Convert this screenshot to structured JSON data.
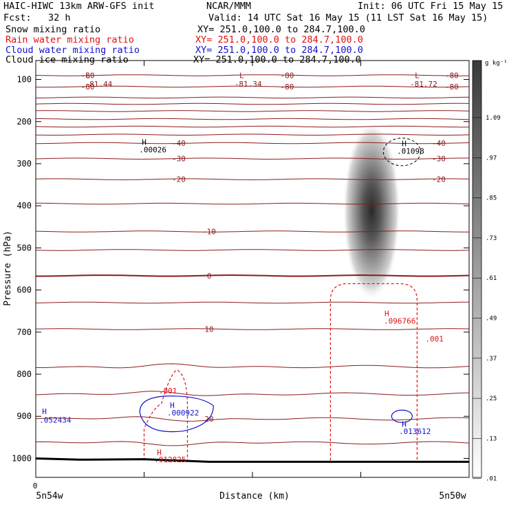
{
  "header": {
    "line1_left": "HAIC-HIWC 13km ARW-GFS init",
    "line1_mid": "NCAR/MMM",
    "line1_right": "Init: 06 UTC Fri 15 May 15",
    "fcst": "Fcst:   32 h",
    "valid": "Valid: 14 UTC Sat 16 May 15 (11 LST Sat 16 May 15)",
    "fields": [
      {
        "name": "Snow mixing ratio",
        "xy": "XY= 251.0,100.0 to 284.7,100.0",
        "color": "#000000"
      },
      {
        "name": "Rain water mixing ratio",
        "xy": "XY= 251.0,100.0 to 284.7,100.0",
        "color": "#e01010"
      },
      {
        "name": "Cloud water mixing ratio",
        "xy": "XY= 251.0,100.0 to 284.7,100.0",
        "color": "#1010d0"
      },
      {
        "name": "Cloud ice mixing ratio",
        "xy": "XY= 251.0,100.0 to 284.7,100.0",
        "color": "#000000"
      }
    ]
  },
  "chart_data": {
    "type": "heatmap",
    "ylabel": "Pressure (hPa)",
    "xlabel": "Distance (km)",
    "x_left_label": "5n54w",
    "x_right_label": "5n50w",
    "x_origin_label": "0",
    "y_ticks": [
      100,
      200,
      300,
      400,
      500,
      600,
      700,
      800,
      900,
      1000
    ],
    "y_range": [
      55,
      1045
    ],
    "y_scale": "linear",
    "x_range": [
      0,
      100
    ],
    "colorbar": {
      "unit": "g kg⁻¹",
      "labels": [
        "1.09",
        ".97",
        ".85",
        ".73",
        ".61",
        ".49",
        ".37",
        ".25",
        ".13",
        ".01"
      ]
    },
    "snow_max": {
      "x": 77.5,
      "p": 420
    },
    "temperature_contours": [
      {
        "p": 90,
        "label": "-80"
      },
      {
        "p": 117,
        "label": "-80"
      },
      {
        "p": 143,
        "label": ""
      },
      {
        "p": 158,
        "label": ""
      },
      {
        "p": 175,
        "label": ""
      },
      {
        "p": 194,
        "label": ""
      },
      {
        "p": 212,
        "label": ""
      },
      {
        "p": 231,
        "label": ""
      },
      {
        "p": 251,
        "label": "-40"
      },
      {
        "p": 288,
        "label": "-30"
      },
      {
        "p": 337,
        "label": "-20"
      },
      {
        "p": 395,
        "label": ""
      },
      {
        "p": 461,
        "label": "-10"
      },
      {
        "p": 505,
        "label": ""
      },
      {
        "p": 566,
        "label": "0"
      },
      {
        "p": 630,
        "label": ""
      },
      {
        "p": 693,
        "label": "10"
      },
      {
        "p": 782,
        "label": ""
      },
      {
        "p": 847,
        "label": ""
      },
      {
        "p": 906,
        "label": "20"
      },
      {
        "p": 963,
        "label": ""
      }
    ],
    "labels": [
      {
        "text": "L",
        "x": 12,
        "p": 97,
        "color": "#8b1a1a"
      },
      {
        "text": "-81.44",
        "x": 14.5,
        "p": 117,
        "color": "#8b1a1a"
      },
      {
        "text": "L",
        "x": 47.5,
        "p": 97,
        "color": "#8b1a1a"
      },
      {
        "text": "-81.34",
        "x": 49,
        "p": 117,
        "color": "#8b1a1a"
      },
      {
        "text": "L",
        "x": 88,
        "p": 97,
        "color": "#8b1a1a"
      },
      {
        "text": "-81.72",
        "x": 89.5,
        "p": 117,
        "color": "#8b1a1a"
      },
      {
        "text": "H",
        "x": 25,
        "p": 255,
        "color": "#000000"
      },
      {
        "text": ".00026",
        "x": 27,
        "p": 273,
        "color": "#000000"
      },
      {
        "text": "H",
        "x": 85,
        "p": 258,
        "color": "#000000"
      },
      {
        "text": ".01098",
        "x": 86.5,
        "p": 276,
        "color": "#000000"
      },
      {
        "text": "H",
        "x": 81,
        "p": 662,
        "color": "#e01010"
      },
      {
        "text": ".096766",
        "x": 84,
        "p": 680,
        "color": "#e01010"
      },
      {
        "text": ".001",
        "x": 92,
        "p": 722,
        "color": "#e01010"
      },
      {
        "text": ".001",
        "x": 30.5,
        "p": 846,
        "color": "#e01010"
      },
      {
        "text": "H",
        "x": 28.5,
        "p": 992,
        "color": "#e01010"
      },
      {
        "text": ".012825",
        "x": 31,
        "p": 1009,
        "color": "#e01010"
      },
      {
        "text": "H",
        "x": 2,
        "p": 895,
        "color": "#1010d0"
      },
      {
        "text": ".052434",
        "x": 4.5,
        "p": 915,
        "color": "#1010d0"
      },
      {
        "text": "H",
        "x": 31.5,
        "p": 880,
        "color": "#1010d0"
      },
      {
        "text": ".000922",
        "x": 34,
        "p": 898,
        "color": "#1010d0"
      },
      {
        "text": "H",
        "x": 85,
        "p": 925,
        "color": "#1010d0"
      },
      {
        "text": ".013612",
        "x": 87.5,
        "p": 942,
        "color": "#1010d0"
      }
    ],
    "colors": {
      "temperature": "#8b1a1a",
      "rain": "#e01010",
      "cloud_water": "#1010d0",
      "cloud_ice": "#000000",
      "terrain": "#000000"
    }
  }
}
